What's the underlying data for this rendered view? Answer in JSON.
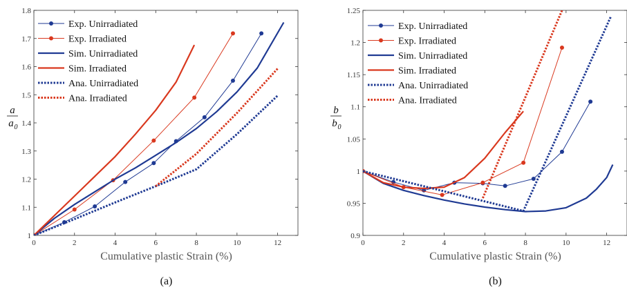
{
  "chart_data": [
    {
      "type": "line",
      "panel_label": "(a)",
      "xlabel": "Cumulative plastic Strain (%)",
      "ylabel": {
        "numerator": "a",
        "denominator": "a",
        "denominator_subscript": "0"
      },
      "xlim": [
        0,
        13
      ],
      "ylim": [
        1.0,
        1.8
      ],
      "xticks": [
        "0",
        "2",
        "4",
        "6",
        "8",
        "10",
        "12"
      ],
      "yticks": [
        "1",
        "1.1",
        "1.2",
        "1.3",
        "1.4",
        "1.5",
        "1.6",
        "1.7",
        "1.8"
      ],
      "legend": {
        "position": "top-left"
      },
      "series": [
        {
          "name": "Exp. Unirradiated",
          "style": "line-marker",
          "color": "#1f3a93",
          "x": [
            0,
            1.5,
            3,
            4.5,
            5.9,
            7,
            8.4,
            9.8,
            11.2
          ],
          "y": [
            1.0,
            1.047,
            1.103,
            1.19,
            1.257,
            1.335,
            1.42,
            1.55,
            1.718
          ]
        },
        {
          "name": "Exp. Irradiated",
          "style": "line-marker",
          "color": "#d9381e",
          "x": [
            0,
            2,
            3.9,
            5.9,
            7.9,
            9.8
          ],
          "y": [
            1.0,
            1.092,
            1.196,
            1.337,
            1.49,
            1.718
          ]
        },
        {
          "name": "Sim. Unirradiated",
          "style": "thick",
          "color": "#1f3a93",
          "x": [
            0,
            1,
            2,
            3,
            4,
            5,
            6,
            7,
            8,
            9,
            10,
            11,
            12.3
          ],
          "y": [
            1.0,
            1.06,
            1.11,
            1.155,
            1.2,
            1.24,
            1.285,
            1.33,
            1.38,
            1.44,
            1.51,
            1.595,
            1.757
          ]
        },
        {
          "name": "Sim. Irradiated",
          "style": "thick",
          "color": "#d9381e",
          "x": [
            0,
            1,
            2,
            3,
            4,
            5,
            6,
            7,
            7.9
          ],
          "y": [
            1.0,
            1.07,
            1.14,
            1.21,
            1.28,
            1.36,
            1.445,
            1.545,
            1.677
          ]
        },
        {
          "name": "Ana. Unirradiated",
          "style": "dotted",
          "color": "#1f3a93",
          "x": [
            0,
            2,
            4,
            6,
            8,
            10,
            12
          ],
          "y": [
            1.0,
            1.058,
            1.117,
            1.175,
            1.235,
            1.36,
            1.497
          ]
        },
        {
          "name": "Ana. Irradiated",
          "style": "dotted",
          "color": "#d9381e",
          "x": [
            6,
            8,
            10,
            12
          ],
          "y": [
            1.175,
            1.29,
            1.435,
            1.593
          ]
        }
      ]
    },
    {
      "type": "line",
      "panel_label": "(b)",
      "xlabel": "Cumulative plastic Strain (%)",
      "ylabel": {
        "numerator": "b",
        "denominator": "b",
        "denominator_subscript": "0"
      },
      "xlim": [
        0,
        13
      ],
      "ylim": [
        0.9,
        1.25
      ],
      "xticks": [
        "0",
        "2",
        "4",
        "6",
        "8",
        "10",
        "12"
      ],
      "yticks": [
        "0.9",
        "0.95",
        "1",
        "1.05",
        "1.1",
        "1.15",
        "1.2",
        "1.25"
      ],
      "legend": {
        "position": "top-left"
      },
      "series": [
        {
          "name": "Exp. Unirradiated",
          "style": "line-marker",
          "color": "#1f3a93",
          "x": [
            0,
            1.5,
            3,
            4.5,
            5.9,
            7,
            8.4,
            9.8,
            11.2
          ],
          "y": [
            1.0,
            0.983,
            0.97,
            0.982,
            0.981,
            0.977,
            0.988,
            1.03,
            1.108
          ]
        },
        {
          "name": "Exp. Irradiated",
          "style": "line-marker",
          "color": "#d9381e",
          "x": [
            0,
            2,
            3.9,
            5.9,
            7.9,
            9.8
          ],
          "y": [
            1.0,
            0.975,
            0.963,
            0.982,
            1.013,
            1.192
          ]
        },
        {
          "name": "Sim. Unirradiated",
          "style": "thick",
          "color": "#1f3a93",
          "x": [
            0,
            1,
            2,
            3,
            4,
            5,
            6,
            7,
            8,
            9,
            10,
            11,
            11.5,
            12,
            12.3
          ],
          "y": [
            1.0,
            0.981,
            0.97,
            0.962,
            0.955,
            0.949,
            0.944,
            0.94,
            0.937,
            0.938,
            0.943,
            0.958,
            0.972,
            0.99,
            1.01
          ]
        },
        {
          "name": "Sim. Irradiated",
          "style": "thick",
          "color": "#d9381e",
          "x": [
            0,
            1,
            2,
            3,
            4,
            5,
            6,
            7,
            7.9
          ],
          "y": [
            1.0,
            0.982,
            0.975,
            0.973,
            0.975,
            0.99,
            1.02,
            1.06,
            1.093
          ]
        },
        {
          "name": "Ana. Unirradiated",
          "style": "dotted",
          "color": "#1f3a93",
          "x": [
            0,
            7.9,
            12.2
          ],
          "y": [
            1.0,
            0.938,
            1.24
          ]
        },
        {
          "name": "Ana. Irradiated",
          "style": "dotted",
          "color": "#d9381e",
          "x": [
            5.9,
            9.8
          ],
          "y": [
            0.958,
            1.25
          ]
        }
      ]
    }
  ]
}
